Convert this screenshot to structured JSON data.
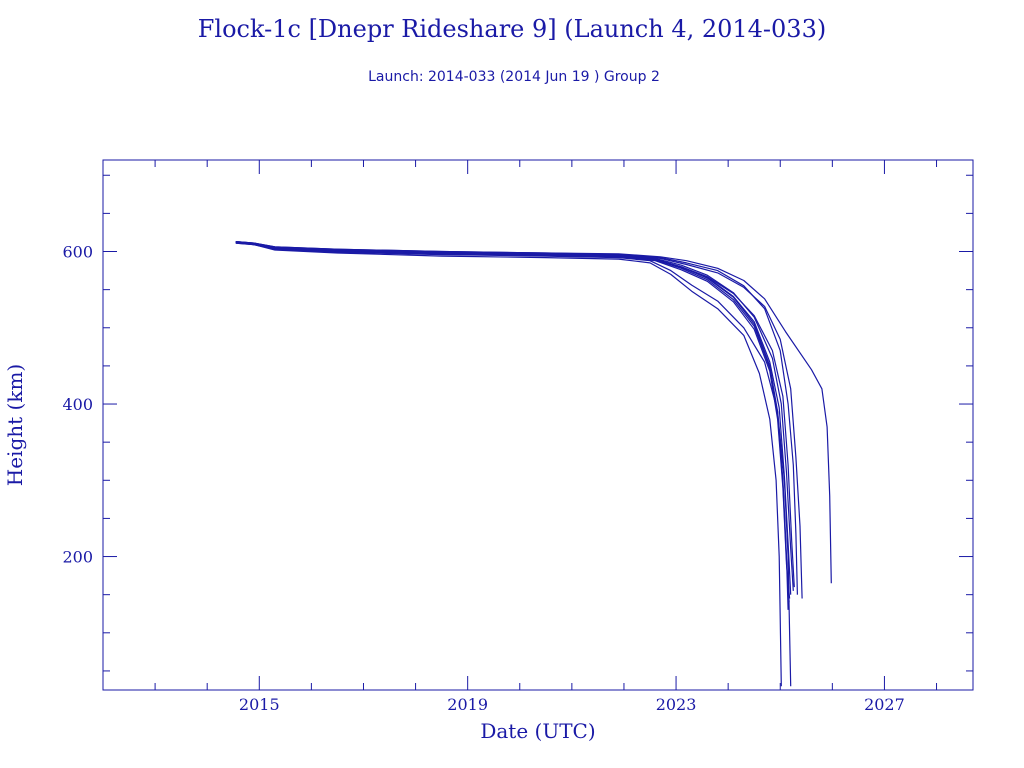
{
  "chart_data": {
    "type": "line",
    "title": "Flock-1c [Dnepr Rideshare 9] (Launch 4, 2014-033)",
    "subtitle": "Launch: 2014-033  (2014 Jun 19 )  Group 2",
    "xlabel": "Date (UTC)",
    "ylabel": "Height (km)",
    "xlim": [
      2012.0,
      2028.7
    ],
    "ylim": [
      25,
      720
    ],
    "xticks": [
      2015,
      2019,
      2023,
      2027
    ],
    "xtick_labels": [
      "2015",
      "2019",
      "2023",
      "2027"
    ],
    "yticks": [
      200,
      400,
      600
    ],
    "ytick_labels": [
      "200",
      "400",
      "600"
    ],
    "grid": false,
    "legend": "none",
    "line_color": "#1a1aa6",
    "series": [
      {
        "x": [
          2014.55,
          2014.9,
          2015.3,
          2016.5,
          2018.5,
          2020.5,
          2021.9,
          2022.6,
          2023.1,
          2023.6,
          2024.1,
          2024.5,
          2024.8,
          2024.95,
          2025.05,
          2025.12,
          2025.15
        ],
        "values": [
          613,
          611,
          605,
          602,
          599,
          597,
          595,
          590,
          580,
          565,
          540,
          505,
          450,
          390,
          300,
          200,
          130
        ]
      },
      {
        "x": [
          2014.55,
          2014.9,
          2015.3,
          2016.5,
          2018.5,
          2020.5,
          2021.9,
          2022.6,
          2023.1,
          2023.6,
          2024.1,
          2024.5,
          2024.8,
          2024.95,
          2025.05,
          2025.12,
          2025.17
        ],
        "values": [
          612,
          610,
          604,
          601,
          598,
          596,
          594,
          589,
          578,
          563,
          537,
          502,
          447,
          385,
          295,
          195,
          140
        ]
      },
      {
        "x": [
          2014.55,
          2014.9,
          2015.3,
          2016.5,
          2018.5,
          2020.5,
          2021.9,
          2022.6,
          2023.1,
          2023.6,
          2024.1,
          2024.5,
          2024.8,
          2024.95,
          2025.05,
          2025.12,
          2025.18
        ],
        "values": [
          611,
          609,
          603,
          600,
          597,
          595,
          593,
          588,
          576,
          561,
          534,
          498,
          443,
          380,
          290,
          190,
          145
        ]
      },
      {
        "x": [
          2014.55,
          2014.9,
          2015.3,
          2016.5,
          2018.5,
          2020.5,
          2021.9,
          2022.6,
          2023.1,
          2023.6,
          2024.1,
          2024.5,
          2024.8,
          2024.98,
          2025.08,
          2025.16,
          2025.2
        ],
        "values": [
          612,
          610,
          605,
          602,
          599,
          597,
          595,
          590,
          579,
          566,
          541,
          508,
          455,
          395,
          305,
          205,
          150
        ]
      },
      {
        "x": [
          2014.55,
          2014.9,
          2015.3,
          2016.5,
          2018.5,
          2020.5,
          2021.9,
          2022.6,
          2023.1,
          2023.6,
          2024.1,
          2024.5,
          2024.85,
          2025.02,
          2025.12,
          2025.2,
          2025.25
        ],
        "values": [
          613,
          611,
          606,
          603,
          600,
          598,
          596,
          591,
          582,
          569,
          546,
          514,
          460,
          400,
          310,
          210,
          155
        ]
      },
      {
        "x": [
          2014.55,
          2014.9,
          2015.3,
          2016.5,
          2018.5,
          2020.5,
          2021.9,
          2022.6,
          2023.1,
          2023.6,
          2024.1,
          2024.5,
          2024.85,
          2025.05,
          2025.15,
          2025.22,
          2025.27
        ],
        "values": [
          611,
          609,
          604,
          601,
          598,
          596,
          594,
          589,
          580,
          567,
          545,
          516,
          470,
          410,
          320,
          220,
          160
        ]
      },
      {
        "x": [
          2014.55,
          2014.9,
          2015.3,
          2016.5,
          2018.5,
          2020.5,
          2021.9,
          2022.5,
          2022.9,
          2023.3,
          2023.8,
          2024.3,
          2024.6,
          2024.8,
          2024.92,
          2024.98,
          2025.0,
          2025.02
        ],
        "values": [
          612,
          609,
          602,
          598,
          594,
          592,
          590,
          585,
          570,
          548,
          525,
          490,
          440,
          380,
          300,
          200,
          120,
          30
        ]
      },
      {
        "x": [
          2014.55,
          2014.9,
          2015.3,
          2016.5,
          2018.5,
          2020.5,
          2021.9,
          2022.5,
          2022.9,
          2023.3,
          2023.8,
          2024.3,
          2024.7,
          2024.95,
          2025.08,
          2025.15,
          2025.18,
          2025.2
        ],
        "values": [
          612,
          609,
          603,
          599,
          596,
          594,
          592,
          588,
          575,
          556,
          535,
          500,
          455,
          390,
          300,
          200,
          100,
          30
        ]
      },
      {
        "x": [
          2014.55,
          2014.9,
          2015.3,
          2016.5,
          2018.5,
          2020.5,
          2021.9,
          2022.7,
          2023.2,
          2023.8,
          2024.3,
          2024.7,
          2025.0,
          2025.15,
          2025.25,
          2025.3,
          2025.33
        ],
        "values": [
          612,
          610,
          605,
          602,
          599,
          597,
          596,
          592,
          585,
          575,
          555,
          525,
          470,
          400,
          320,
          230,
          150
        ]
      },
      {
        "x": [
          2014.55,
          2014.9,
          2015.3,
          2016.5,
          2018.5,
          2020.5,
          2021.9,
          2022.7,
          2023.2,
          2023.8,
          2024.3,
          2024.7,
          2025.1,
          2025.6,
          2025.8,
          2025.9,
          2025.95,
          2025.98
        ],
        "values": [
          613,
          611,
          606,
          603,
          600,
          598,
          597,
          593,
          588,
          578,
          562,
          538,
          495,
          445,
          420,
          370,
          280,
          165
        ]
      },
      {
        "x": [
          2014.55,
          2014.9,
          2015.3,
          2016.5,
          2018.5,
          2020.5,
          2021.9,
          2022.7,
          2023.2,
          2023.8,
          2024.3,
          2024.7,
          2025.0,
          2025.2,
          2025.3,
          2025.38,
          2025.42
        ],
        "values": [
          612,
          610,
          605,
          602,
          599,
          597,
          595,
          591,
          583,
          572,
          553,
          528,
          485,
          420,
          330,
          240,
          145
        ]
      }
    ]
  }
}
